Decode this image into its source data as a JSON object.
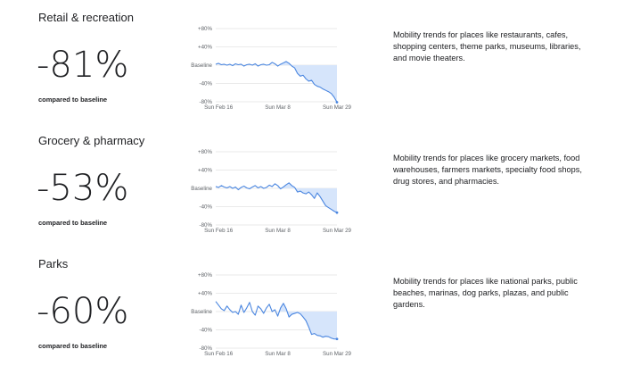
{
  "sections": [
    {
      "title": "Retail & recreation",
      "change": "-81%",
      "compared": "compared to baseline",
      "description": "Mobility trends for places like restaurants, cafes, shopping centers, theme parks, museums, libraries, and movie theaters."
    },
    {
      "title": "Grocery & pharmacy",
      "change": "-53%",
      "compared": "compared to baseline",
      "description": "Mobility trends for places like grocery markets, food warehouses, farmers markets, specialty food shops, drug stores, and pharmacies."
    },
    {
      "title": "Parks",
      "change": "-60%",
      "compared": "compared to baseline",
      "description": "Mobility trends for places like national parks, public beaches, marinas, dog parks, plazas, and public gardens."
    }
  ],
  "colors": {
    "line": "#4a86e0",
    "fill": "#d6e5fb",
    "grid": "#e3e3e3",
    "text": "#202124",
    "axis_text": "#5f6368"
  },
  "chart_data": [
    {
      "type": "area",
      "title": "Retail & recreation",
      "y_tick_labels": [
        "+80%",
        "+40%",
        "Baseline",
        "-40%",
        "-80%"
      ],
      "y_ticks": [
        80,
        40,
        0,
        -40,
        -80
      ],
      "ylim": [
        -80,
        80
      ],
      "x_tick_labels": [
        "Sun Feb 16",
        "Sun Mar 8",
        "Sun Mar 29"
      ],
      "x_ticks": [
        "2020-02-16",
        "2020-03-08",
        "2020-03-29"
      ],
      "x": [
        "2020-02-15",
        "2020-02-16",
        "2020-02-17",
        "2020-02-18",
        "2020-02-19",
        "2020-02-20",
        "2020-02-21",
        "2020-02-22",
        "2020-02-23",
        "2020-02-24",
        "2020-02-25",
        "2020-02-26",
        "2020-02-27",
        "2020-02-28",
        "2020-02-29",
        "2020-03-01",
        "2020-03-02",
        "2020-03-03",
        "2020-03-04",
        "2020-03-05",
        "2020-03-06",
        "2020-03-07",
        "2020-03-08",
        "2020-03-09",
        "2020-03-10",
        "2020-03-11",
        "2020-03-12",
        "2020-03-13",
        "2020-03-14",
        "2020-03-15",
        "2020-03-16",
        "2020-03-17",
        "2020-03-18",
        "2020-03-19",
        "2020-03-20",
        "2020-03-21",
        "2020-03-22",
        "2020-03-23",
        "2020-03-24",
        "2020-03-25",
        "2020-03-26",
        "2020-03-27",
        "2020-03-28",
        "2020-03-29"
      ],
      "values": [
        2,
        4,
        1,
        2,
        0,
        2,
        -1,
        3,
        1,
        2,
        -2,
        1,
        2,
        0,
        3,
        -2,
        1,
        2,
        0,
        1,
        6,
        3,
        -2,
        2,
        5,
        8,
        4,
        -2,
        -6,
        -18,
        -24,
        -22,
        -30,
        -35,
        -33,
        -42,
        -46,
        -48,
        -52,
        -55,
        -58,
        -62,
        -70,
        -81
      ],
      "baseline_start": "2020-03-08"
    },
    {
      "type": "area",
      "title": "Grocery & pharmacy",
      "y_tick_labels": [
        "+80%",
        "+40%",
        "Baseline",
        "-40%",
        "-80%"
      ],
      "y_ticks": [
        80,
        40,
        0,
        -40,
        -80
      ],
      "ylim": [
        -80,
        80
      ],
      "x_tick_labels": [
        "Sun Feb 16",
        "Sun Mar 8",
        "Sun Mar 29"
      ],
      "x_ticks": [
        "2020-02-16",
        "2020-03-08",
        "2020-03-29"
      ],
      "x": [
        "2020-02-15",
        "2020-02-16",
        "2020-02-17",
        "2020-02-18",
        "2020-02-19",
        "2020-02-20",
        "2020-02-21",
        "2020-02-22",
        "2020-02-23",
        "2020-02-24",
        "2020-02-25",
        "2020-02-26",
        "2020-02-27",
        "2020-02-28",
        "2020-02-29",
        "2020-03-01",
        "2020-03-02",
        "2020-03-03",
        "2020-03-04",
        "2020-03-05",
        "2020-03-06",
        "2020-03-07",
        "2020-03-08",
        "2020-03-09",
        "2020-03-10",
        "2020-03-11",
        "2020-03-12",
        "2020-03-13",
        "2020-03-14",
        "2020-03-15",
        "2020-03-16",
        "2020-03-17",
        "2020-03-18",
        "2020-03-19",
        "2020-03-20",
        "2020-03-21",
        "2020-03-22",
        "2020-03-23",
        "2020-03-24",
        "2020-03-25",
        "2020-03-26",
        "2020-03-27",
        "2020-03-28",
        "2020-03-29"
      ],
      "values": [
        4,
        2,
        6,
        3,
        1,
        4,
        0,
        3,
        -3,
        2,
        5,
        1,
        -1,
        3,
        6,
        1,
        4,
        0,
        2,
        7,
        4,
        10,
        6,
        -1,
        3,
        8,
        12,
        6,
        2,
        -8,
        -6,
        -10,
        -12,
        -8,
        -14,
        -22,
        -10,
        -18,
        -28,
        -38,
        -42,
        -46,
        -50,
        -53
      ],
      "baseline_start": "2020-03-08"
    },
    {
      "type": "area",
      "title": "Parks",
      "y_tick_labels": [
        "+80%",
        "+40%",
        "Baseline",
        "-40%",
        "-80%"
      ],
      "y_ticks": [
        80,
        40,
        0,
        -40,
        -80
      ],
      "ylim": [
        -80,
        80
      ],
      "x_tick_labels": [
        "Sun Feb 16",
        "Sun Mar 8",
        "Sun Mar 29"
      ],
      "x_ticks": [
        "2020-02-16",
        "2020-03-08",
        "2020-03-29"
      ],
      "x": [
        "2020-02-15",
        "2020-02-16",
        "2020-02-17",
        "2020-02-18",
        "2020-02-19",
        "2020-02-20",
        "2020-02-21",
        "2020-02-22",
        "2020-02-23",
        "2020-02-24",
        "2020-02-25",
        "2020-02-26",
        "2020-02-27",
        "2020-02-28",
        "2020-02-29",
        "2020-03-01",
        "2020-03-02",
        "2020-03-03",
        "2020-03-04",
        "2020-03-05",
        "2020-03-06",
        "2020-03-07",
        "2020-03-08",
        "2020-03-09",
        "2020-03-10",
        "2020-03-11",
        "2020-03-12",
        "2020-03-13",
        "2020-03-14",
        "2020-03-15",
        "2020-03-16",
        "2020-03-17",
        "2020-03-18",
        "2020-03-19",
        "2020-03-20",
        "2020-03-21",
        "2020-03-22",
        "2020-03-23",
        "2020-03-24",
        "2020-03-25",
        "2020-03-26",
        "2020-03-27",
        "2020-03-28",
        "2020-03-29"
      ],
      "values": [
        22,
        14,
        6,
        2,
        12,
        4,
        -2,
        0,
        -6,
        14,
        -2,
        8,
        20,
        0,
        -8,
        12,
        6,
        -4,
        8,
        16,
        0,
        4,
        -10,
        8,
        18,
        6,
        -12,
        -6,
        -4,
        -2,
        -5,
        -12,
        -20,
        -34,
        -50,
        -48,
        -52,
        -53,
        -56,
        -54,
        -55,
        -58,
        -60,
        -60
      ],
      "baseline_start": "2020-03-08"
    }
  ]
}
